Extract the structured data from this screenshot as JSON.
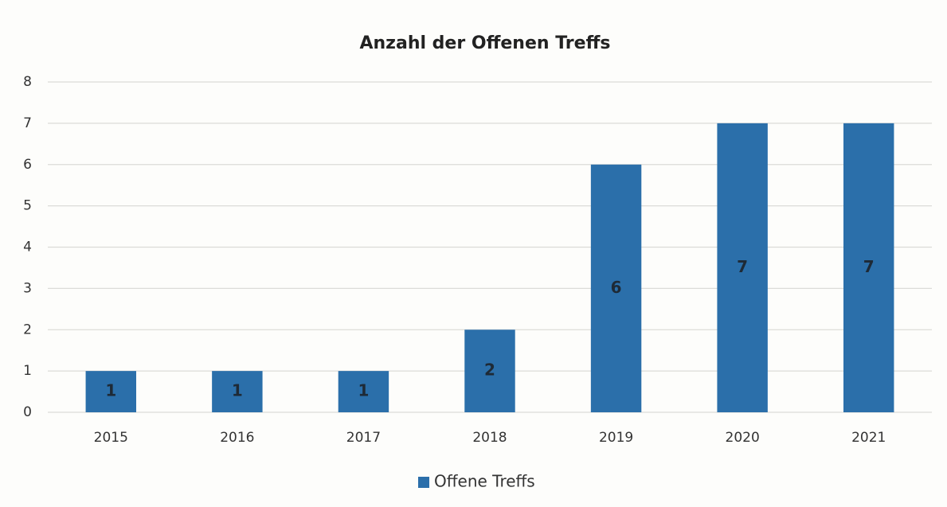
{
  "chart_data": {
    "type": "bar",
    "title": "Anzahl der Offenen Treffs",
    "categories": [
      "2015",
      "2016",
      "2017",
      "2018",
      "2019",
      "2020",
      "2021"
    ],
    "series": [
      {
        "name": "Offene Treffs",
        "color": "#2b6faa",
        "values": [
          1,
          1,
          1,
          2,
          6,
          7,
          7
        ]
      }
    ],
    "ylim": [
      0,
      8
    ],
    "yticks": [
      0,
      1,
      2,
      3,
      4,
      5,
      6,
      7,
      8
    ],
    "grid": true,
    "legend": "bottom",
    "data_labels": true
  }
}
